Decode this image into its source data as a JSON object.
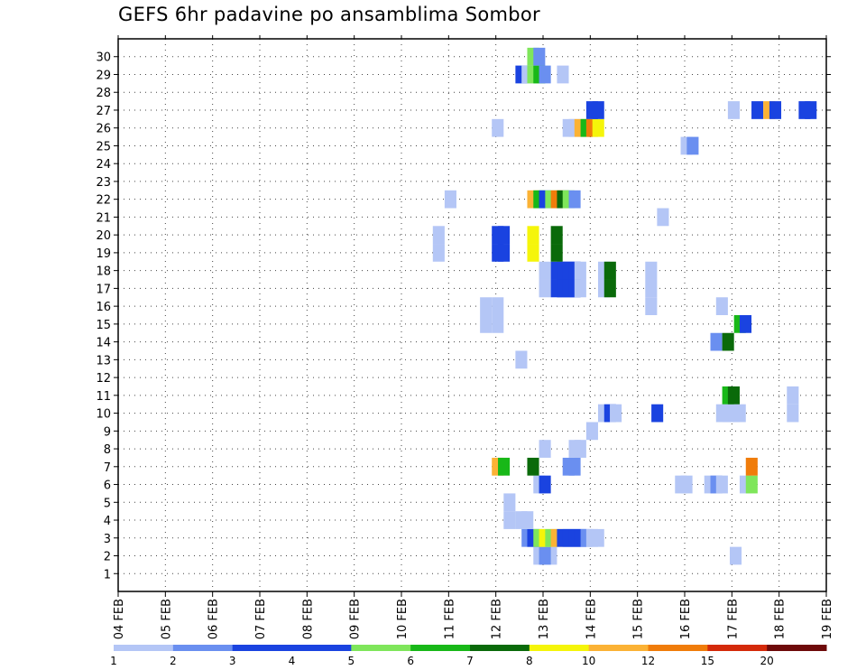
{
  "chart_data": {
    "type": "heatmap",
    "title": "GEFS 6hr padavine po ansamblima Sombor",
    "xlabel": "",
    "ylabel": "",
    "x_tick_labels": [
      "04 FEB",
      "05 FEB",
      "06 FEB",
      "07 FEB",
      "08 FEB",
      "09 FEB",
      "10 FEB",
      "11 FEB",
      "12 FEB",
      "13 FEB",
      "14 FEB",
      "15 FEB",
      "16 FEB",
      "17 FEB",
      "18 FEB",
      "19 FEB"
    ],
    "x_range_days": [
      0,
      15
    ],
    "y_tick_labels": [
      "1",
      "2",
      "3",
      "4",
      "5",
      "6",
      "7",
      "8",
      "9",
      "10",
      "11",
      "12",
      "13",
      "14",
      "15",
      "16",
      "17",
      "18",
      "19",
      "20",
      "21",
      "22",
      "23",
      "24",
      "25",
      "26",
      "27",
      "28",
      "29",
      "30"
    ],
    "y_range": [
      0,
      31
    ],
    "grid": true,
    "legend_placement": "bottom",
    "legend": {
      "colors": [
        "#b4c6f6",
        "#6a8ff0",
        "#1a43e0",
        "#1a43e0",
        "#7fe65b",
        "#18b818",
        "#0a6a0a",
        "#f5f50a",
        "#fbb235",
        "#f07c0a",
        "#d42a0a",
        "#6e0a0a"
      ],
      "labels": [
        "1",
        "2",
        "3",
        "4",
        "5",
        "6",
        "7",
        "8",
        "10",
        "12",
        "15",
        "20"
      ]
    },
    "cell_width_days": 0.25,
    "values": [
      {
        "member": 2,
        "day": 8.92,
        "level": 1
      },
      {
        "member": 2,
        "day": 9.17,
        "level": 1
      },
      {
        "member": 2,
        "day": 9.04,
        "level": 2
      },
      {
        "member": 2,
        "day": 13.08,
        "level": 1
      },
      {
        "member": 3,
        "day": 8.67,
        "level": 2
      },
      {
        "member": 3,
        "day": 8.79,
        "level": 4
      },
      {
        "member": 3,
        "day": 8.92,
        "level": 5
      },
      {
        "member": 3,
        "day": 9.04,
        "level": 8
      },
      {
        "member": 3,
        "day": 9.17,
        "level": 5
      },
      {
        "member": 3,
        "day": 9.29,
        "level": 10
      },
      {
        "member": 3,
        "day": 9.42,
        "level": 4
      },
      {
        "member": 3,
        "day": 9.54,
        "level": 4
      },
      {
        "member": 3,
        "day": 9.67,
        "level": 4
      },
      {
        "member": 3,
        "day": 9.79,
        "level": 4
      },
      {
        "member": 3,
        "day": 9.92,
        "level": 2
      },
      {
        "member": 3,
        "day": 10.04,
        "level": 1
      },
      {
        "member": 3,
        "day": 10.17,
        "level": 1
      },
      {
        "member": 4,
        "day": 8.29,
        "level": 1
      },
      {
        "member": 4,
        "day": 8.54,
        "level": 1
      },
      {
        "member": 4,
        "day": 8.67,
        "level": 1
      },
      {
        "member": 5,
        "day": 8.29,
        "level": 1
      },
      {
        "member": 6,
        "day": 8.92,
        "level": 1
      },
      {
        "member": 6,
        "day": 9.04,
        "level": 4
      },
      {
        "member": 6,
        "day": 11.92,
        "level": 1
      },
      {
        "member": 6,
        "day": 12.04,
        "level": 1
      },
      {
        "member": 6,
        "day": 12.54,
        "level": 1
      },
      {
        "member": 6,
        "day": 12.67,
        "level": 2
      },
      {
        "member": 6,
        "day": 12.79,
        "level": 1
      },
      {
        "member": 6,
        "day": 13.29,
        "level": 1
      },
      {
        "member": 6,
        "day": 13.42,
        "level": 5
      },
      {
        "member": 7,
        "day": 8.04,
        "level": 10
      },
      {
        "member": 7,
        "day": 8.17,
        "level": 6
      },
      {
        "member": 7,
        "day": 8.79,
        "level": 7
      },
      {
        "member": 7,
        "day": 9.54,
        "level": 2
      },
      {
        "member": 7,
        "day": 9.67,
        "level": 2
      },
      {
        "member": 7,
        "day": 13.42,
        "level": 12
      },
      {
        "member": 8,
        "day": 9.04,
        "level": 1
      },
      {
        "member": 8,
        "day": 9.67,
        "level": 1
      },
      {
        "member": 8,
        "day": 9.79,
        "level": 1
      },
      {
        "member": 9,
        "day": 10.04,
        "level": 1
      },
      {
        "member": 10,
        "day": 10.29,
        "level": 1
      },
      {
        "member": 10,
        "day": 10.42,
        "level": 3
      },
      {
        "member": 10,
        "day": 10.54,
        "level": 1
      },
      {
        "member": 10,
        "day": 11.42,
        "level": 3
      },
      {
        "member": 10,
        "day": 12.79,
        "level": 1
      },
      {
        "member": 10,
        "day": 12.92,
        "level": 1
      },
      {
        "member": 10,
        "day": 13.04,
        "level": 1
      },
      {
        "member": 10,
        "day": 13.17,
        "level": 1
      },
      {
        "member": 10,
        "day": 14.29,
        "level": 1
      },
      {
        "member": 11,
        "day": 12.92,
        "level": 6
      },
      {
        "member": 11,
        "day": 13.04,
        "level": 7
      },
      {
        "member": 11,
        "day": 14.29,
        "level": 1
      },
      {
        "member": 13,
        "day": 8.54,
        "level": 1
      },
      {
        "member": 14,
        "day": 12.67,
        "level": 2
      },
      {
        "member": 14,
        "day": 12.92,
        "level": 7
      },
      {
        "member": 15,
        "day": 7.79,
        "level": 1
      },
      {
        "member": 15,
        "day": 8.04,
        "level": 1
      },
      {
        "member": 15,
        "day": 13.17,
        "level": 6
      },
      {
        "member": 15,
        "day": 13.29,
        "level": 3
      },
      {
        "member": 16,
        "day": 7.79,
        "level": 1
      },
      {
        "member": 16,
        "day": 8.04,
        "level": 1
      },
      {
        "member": 16,
        "day": 11.29,
        "level": 1
      },
      {
        "member": 16,
        "day": 12.79,
        "level": 1
      },
      {
        "member": 17,
        "day": 9.04,
        "level": 1
      },
      {
        "member": 17,
        "day": 9.29,
        "level": 3
      },
      {
        "member": 17,
        "day": 9.42,
        "level": 3
      },
      {
        "member": 17,
        "day": 9.54,
        "level": 3
      },
      {
        "member": 17,
        "day": 9.67,
        "level": 3
      },
      {
        "member": 17,
        "day": 9.79,
        "level": 1
      },
      {
        "member": 17,
        "day": 10.29,
        "level": 1
      },
      {
        "member": 17,
        "day": 10.42,
        "level": 7
      },
      {
        "member": 17,
        "day": 11.29,
        "level": 1
      },
      {
        "member": 18,
        "day": 9.04,
        "level": 1
      },
      {
        "member": 18,
        "day": 9.29,
        "level": 3
      },
      {
        "member": 18,
        "day": 9.42,
        "level": 3
      },
      {
        "member": 18,
        "day": 9.54,
        "level": 3
      },
      {
        "member": 18,
        "day": 9.67,
        "level": 3
      },
      {
        "member": 18,
        "day": 9.79,
        "level": 1
      },
      {
        "member": 18,
        "day": 10.29,
        "level": 1
      },
      {
        "member": 18,
        "day": 10.42,
        "level": 7
      },
      {
        "member": 18,
        "day": 11.29,
        "level": 1
      },
      {
        "member": 19,
        "day": 6.79,
        "level": 1
      },
      {
        "member": 19,
        "day": 8.04,
        "level": 3
      },
      {
        "member": 19,
        "day": 8.17,
        "level": 3
      },
      {
        "member": 19,
        "day": 8.79,
        "level": 8
      },
      {
        "member": 19,
        "day": 9.29,
        "level": 7
      },
      {
        "member": 20,
        "day": 6.79,
        "level": 1
      },
      {
        "member": 20,
        "day": 8.04,
        "level": 3
      },
      {
        "member": 20,
        "day": 8.17,
        "level": 3
      },
      {
        "member": 20,
        "day": 8.79,
        "level": 8
      },
      {
        "member": 20,
        "day": 9.29,
        "level": 7
      },
      {
        "member": 21,
        "day": 11.54,
        "level": 1
      },
      {
        "member": 22,
        "day": 7.04,
        "level": 1
      },
      {
        "member": 22,
        "day": 8.79,
        "level": 10
      },
      {
        "member": 22,
        "day": 8.92,
        "level": 6
      },
      {
        "member": 22,
        "day": 9.04,
        "level": 3
      },
      {
        "member": 22,
        "day": 9.17,
        "level": 5
      },
      {
        "member": 22,
        "day": 9.29,
        "level": 12
      },
      {
        "member": 22,
        "day": 9.42,
        "level": 7
      },
      {
        "member": 22,
        "day": 9.54,
        "level": 5
      },
      {
        "member": 22,
        "day": 9.67,
        "level": 2
      },
      {
        "member": 25,
        "day": 12.04,
        "level": 1
      },
      {
        "member": 25,
        "day": 12.17,
        "level": 2
      },
      {
        "member": 26,
        "day": 8.04,
        "level": 1
      },
      {
        "member": 26,
        "day": 9.54,
        "level": 1
      },
      {
        "member": 26,
        "day": 9.67,
        "level": 1
      },
      {
        "member": 26,
        "day": 9.79,
        "level": 10
      },
      {
        "member": 26,
        "day": 9.92,
        "level": 6
      },
      {
        "member": 26,
        "day": 10.04,
        "level": 12
      },
      {
        "member": 26,
        "day": 10.17,
        "level": 8
      },
      {
        "member": 27,
        "day": 10.04,
        "level": 3
      },
      {
        "member": 27,
        "day": 10.17,
        "level": 3
      },
      {
        "member": 27,
        "day": 13.04,
        "level": 1
      },
      {
        "member": 27,
        "day": 13.54,
        "level": 3
      },
      {
        "member": 27,
        "day": 13.79,
        "level": 10
      },
      {
        "member": 27,
        "day": 13.92,
        "level": 3
      },
      {
        "member": 27,
        "day": 14.54,
        "level": 3
      },
      {
        "member": 27,
        "day": 14.67,
        "level": 3
      },
      {
        "member": 29,
        "day": 8.54,
        "level": 3
      },
      {
        "member": 29,
        "day": 8.67,
        "level": 1
      },
      {
        "member": 29,
        "day": 8.79,
        "level": 5
      },
      {
        "member": 29,
        "day": 8.92,
        "level": 6
      },
      {
        "member": 29,
        "day": 9.04,
        "level": 2
      },
      {
        "member": 29,
        "day": 9.42,
        "level": 1
      },
      {
        "member": 30,
        "day": 8.79,
        "level": 5
      },
      {
        "member": 30,
        "day": 8.92,
        "level": 2
      }
    ]
  }
}
